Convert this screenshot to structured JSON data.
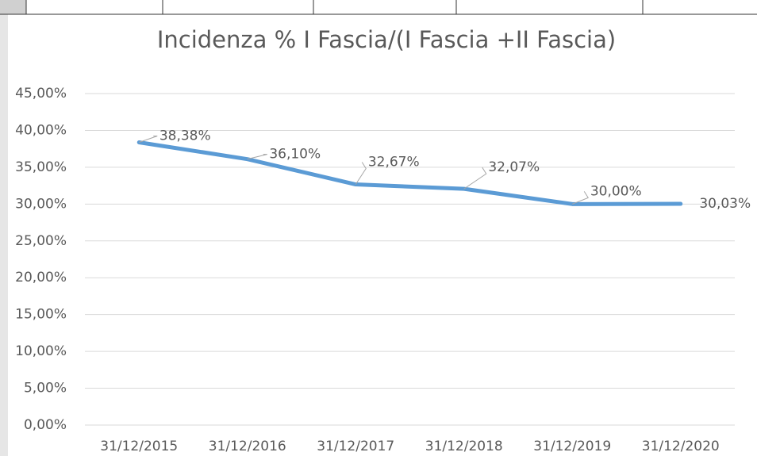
{
  "chart_data": {
    "type": "line",
    "title": "Incidenza % I Fascia/(I Fascia +II Fascia)",
    "categories": [
      "31/12/2015",
      "31/12/2016",
      "31/12/2017",
      "31/12/2018",
      "31/12/2019",
      "31/12/2020"
    ],
    "series": [
      {
        "name": "Incidenza",
        "color": "#5b9bd5",
        "values": [
          38.38,
          36.1,
          32.67,
          32.07,
          30.0,
          30.03
        ],
        "value_labels": [
          "38,38%",
          "36,10%",
          "32,67%",
          "32,07%",
          "30,00%",
          "30,03%"
        ]
      }
    ],
    "ylim": [
      0,
      45
    ],
    "yticks": [
      {
        "value": 0,
        "label": "0,00%"
      },
      {
        "value": 5,
        "label": "5,00%"
      },
      {
        "value": 10,
        "label": "10,00%"
      },
      {
        "value": 15,
        "label": "15,00%"
      },
      {
        "value": 20,
        "label": "20,00%"
      },
      {
        "value": 25,
        "label": "25,00%"
      },
      {
        "value": 30,
        "label": "30,00%"
      },
      {
        "value": 35,
        "label": "35,00%"
      },
      {
        "value": 40,
        "label": "40,00%"
      },
      {
        "value": 45,
        "label": "45,00%"
      }
    ],
    "grid": true
  }
}
